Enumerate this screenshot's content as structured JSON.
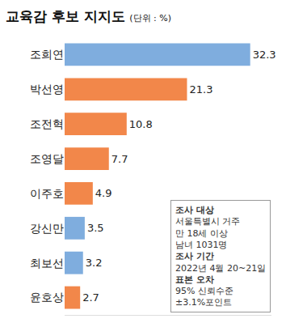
{
  "chart_data": {
    "type": "bar",
    "title": "교육감 후보 지지도",
    "subtitle": "(단위 : %)",
    "orientation": "horizontal",
    "categories": [
      "조희연",
      "박선영",
      "조전혁",
      "조영달",
      "이주호",
      "강신만",
      "최보선",
      "윤호상"
    ],
    "values": [
      32.3,
      21.3,
      10.8,
      7.7,
      4.9,
      3.5,
      3.2,
      2.7
    ],
    "colors": [
      "#7fadde",
      "#f2874a",
      "#f2874a",
      "#f2874a",
      "#f2874a",
      "#7fadde",
      "#7fadde",
      "#f2874a"
    ],
    "xlim": [
      0,
      36
    ],
    "data_labels": true,
    "tick_labels": "y",
    "grid": false,
    "notes": [
      {
        "label": "조사 대상",
        "lines": [
          "서울특별시 거주",
          "만 18세 이상",
          "남녀 1031명"
        ]
      },
      {
        "label": "조사 기간",
        "lines": [
          "2022년 4월 20~21일"
        ]
      },
      {
        "label": "표본 오차",
        "lines": [
          "95% 신뢰수준",
          "±3.1%포인트"
        ]
      }
    ]
  }
}
